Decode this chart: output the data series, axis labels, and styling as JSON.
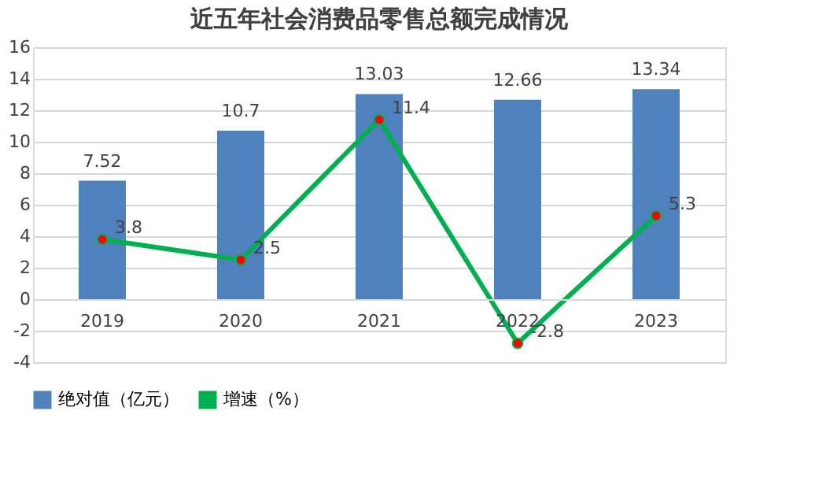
{
  "chart_data": {
    "type": "bar",
    "title": "近五年社会消费品零售总额完成情况",
    "categories": [
      "2019",
      "2020",
      "2021",
      "2022",
      "2023"
    ],
    "series": [
      {
        "name": "绝对值（亿元）",
        "color": "#4f81bd",
        "values": [
          7.52,
          10.7,
          13.03,
          12.66,
          13.34
        ]
      },
      {
        "name": "增速（%）",
        "type": "line",
        "color": "#00b050",
        "marker": "circle",
        "values": [
          3.8,
          2.5,
          11.4,
          -2.8,
          5.3
        ]
      }
    ],
    "ylim": [
      -4,
      16
    ],
    "yticks": [
      -4,
      -2,
      0,
      2,
      4,
      6,
      8,
      10,
      12,
      14,
      16
    ],
    "grid": "y",
    "legend": "bottom",
    "data_labels": true
  }
}
